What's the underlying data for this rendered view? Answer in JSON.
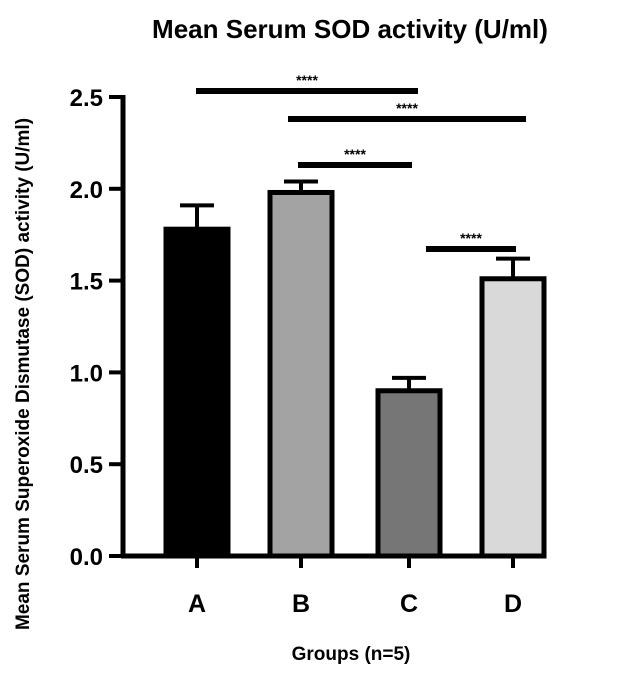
{
  "chart_data": {
    "type": "bar",
    "title": "Mean Serum SOD activity (U/ml)",
    "xlabel": "Groups (n=5)",
    "ylabel": "Mean Serum Superoxide Dismutase (SOD) activity (U/ml)",
    "ylim": [
      0,
      2.5
    ],
    "yticks": [
      "0.0",
      "0.5",
      "1.0",
      "1.5",
      "2.0",
      "2.5"
    ],
    "categories": [
      "A",
      "B",
      "C",
      "D"
    ],
    "values": [
      1.78,
      1.98,
      0.9,
      1.51
    ],
    "error": [
      0.13,
      0.06,
      0.07,
      0.11
    ],
    "colors": [
      "#000000",
      "#a3a3a3",
      "#767676",
      "#d9d9d9"
    ],
    "grid": false,
    "legend": "none",
    "significance": [
      {
        "from": "A",
        "to": "C",
        "label": "****"
      },
      {
        "from": "B",
        "to": "D",
        "label": "****"
      },
      {
        "from": "B",
        "to": "C",
        "label": "****"
      },
      {
        "from": "C",
        "to": "D",
        "label": "****"
      }
    ]
  }
}
